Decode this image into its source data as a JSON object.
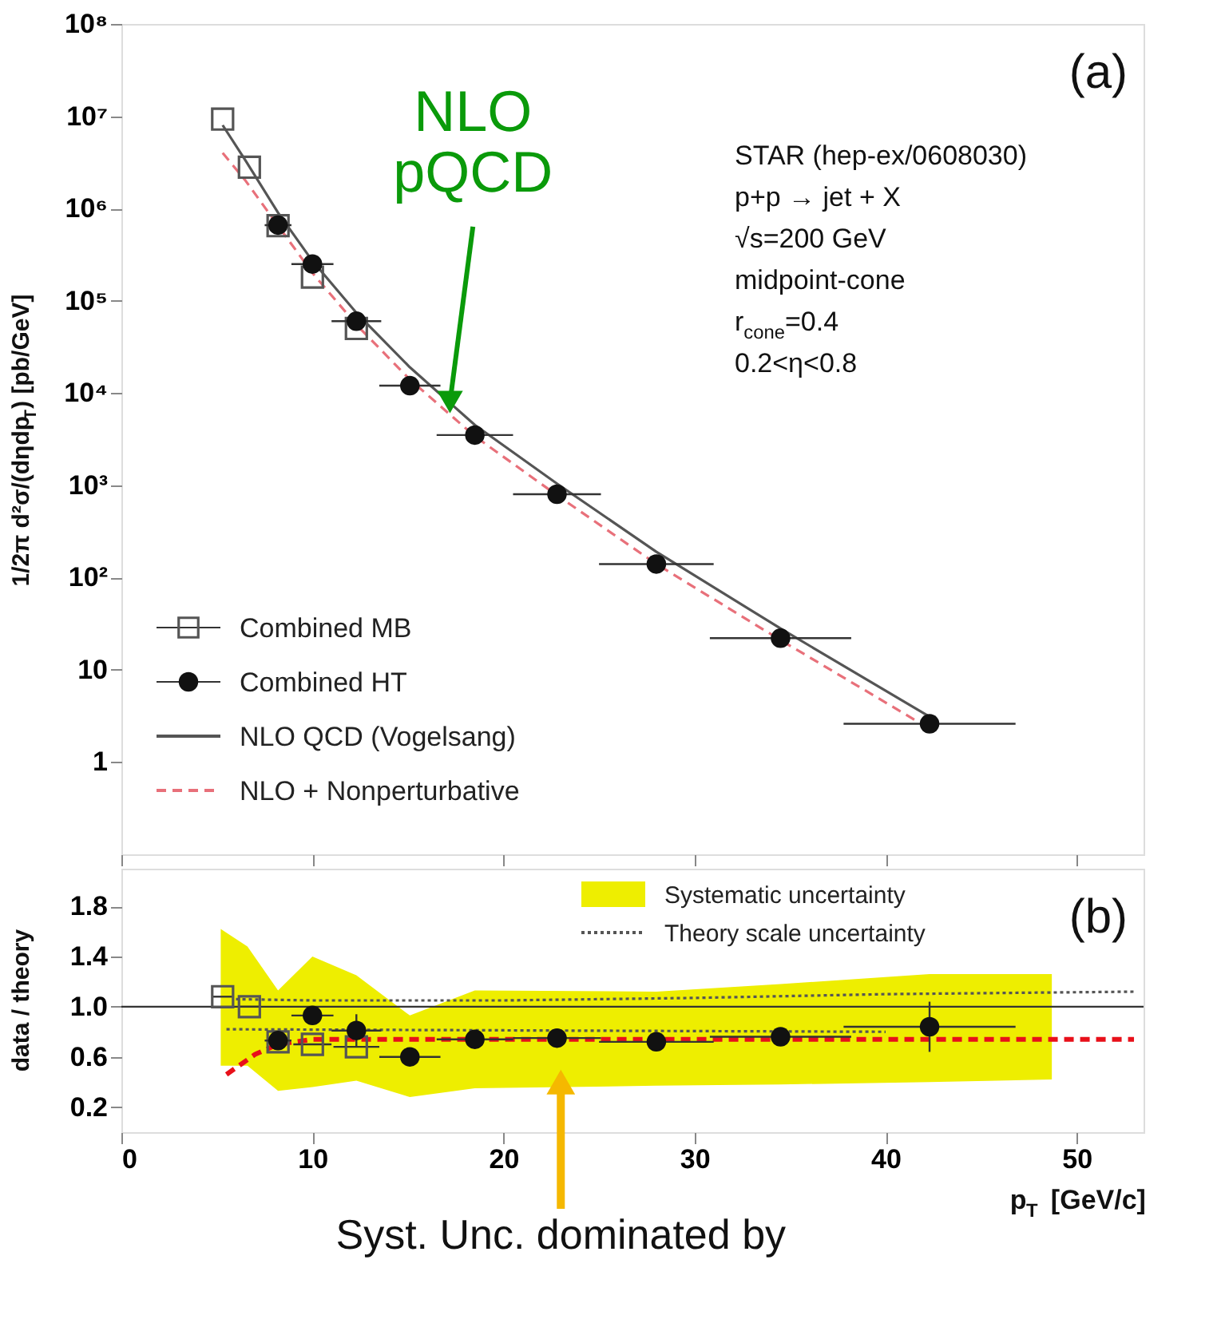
{
  "chart_data": [
    {
      "type": "scatter",
      "ylabel": "1/2π d²σ/(dηdp$_{T}$) [pb/GeV]",
      "xlim": [
        0,
        53.5
      ],
      "xticks": [
        0,
        10,
        20,
        30,
        40,
        50
      ],
      "ylim": [
        0.1,
        100000000
      ],
      "log": "y",
      "yticks": [
        1,
        10,
        {
          "value": 100,
          "label": "10²"
        },
        {
          "value": 1000,
          "label": "10³"
        },
        {
          "value": 10000,
          "label": "10⁴"
        },
        {
          "value": 100000,
          "label": "10⁵"
        },
        {
          "value": 1000000,
          "label": "10⁶"
        },
        {
          "value": 10000000,
          "label": "10⁷"
        },
        {
          "value": 100000000,
          "label": "10⁸"
        }
      ],
      "tick_labels": "y",
      "legend": "bottom left",
      "annotations": [
        "(a)",
        "STAR (hep-ex/0608030)",
        "p+p → jet + X",
        "√s=200  GeV",
        "midpoint-cone",
        "r$_{cone}$=0.4",
        "0.2<η<0.8",
        {
          "text": "NLO pQCD",
          "x": 17.2,
          "y": 8000
        }
      ],
      "series": [
        {
          "name": "Combined MB",
          "type": "scatter",
          "marker": "square",
          "color": "#555555",
          "x": [
            5.3,
            6.7,
            8.2,
            10.0,
            12.3
          ],
          "values": [
            9300000,
            2800000,
            650000,
            180000,
            50000
          ]
        },
        {
          "name": "Combined HT",
          "type": "scatter",
          "marker": "circle",
          "color": "#111111",
          "x": [
            8.2,
            10.0,
            12.3,
            15.1,
            18.5,
            22.8,
            28.0,
            34.5,
            42.3
          ],
          "values": [
            660000,
            250000,
            60000,
            12000,
            3500,
            800,
            140,
            22,
            2.6
          ],
          "xerrors": [
            0.7,
            1.1,
            1.3,
            1.6,
            2,
            2.3,
            3,
            3.7,
            4.5
          ]
        },
        {
          "name": "NLO QCD (Vogelsang)",
          "type": "line",
          "line_style": "solid",
          "color": "#555555",
          "x": [
            5.3,
            6.5,
            8.2,
            10,
            12.3,
            15.1,
            18.5,
            22.8,
            28,
            34.5,
            42.3
          ],
          "values": [
            8000000,
            3300000,
            900000,
            270000,
            74000,
            19000,
            4500,
            1040,
            190,
            28,
            3.1
          ]
        },
        {
          "name": "NLO + Nonperturbative",
          "type": "line",
          "line_style": "dashed",
          "color": "#e8707a",
          "x": [
            5.3,
            6.5,
            8.2,
            10,
            12.3,
            15.1,
            18.5,
            22.8,
            28,
            34.5,
            42.3
          ],
          "values": [
            4000000,
            2000000,
            650000,
            200000,
            55000,
            14000,
            3400,
            780,
            140,
            21,
            2.3
          ]
        }
      ]
    },
    {
      "type": "scatter",
      "ylabel": "data / theory",
      "xlabel": "p$_{T}$ [GeV/c]",
      "xlim": [
        0,
        53.5
      ],
      "xticks": [
        0,
        10,
        20,
        30,
        40,
        50
      ],
      "ylim": [
        0,
        2.1
      ],
      "yticks": [
        0.2,
        0.6,
        {
          "value": 1,
          "label": "1.0"
        },
        1.4,
        1.8
      ],
      "legend": "top right",
      "ref_lines": [
        {
          "axis": "y",
          "value": 1,
          "color": "#333333"
        }
      ],
      "annotations": [
        "(b)",
        {
          "text": "Syst. Unc. dominated by",
          "x": 23,
          "y": 0.4
        }
      ],
      "series": [
        {
          "name": "Systematic uncertainty",
          "type": "area",
          "color": "#eeee00",
          "x": [
            5.2,
            6.6,
            8.2,
            10,
            12.3,
            15.1,
            18.5,
            28,
            34.5,
            42.3,
            48.7
          ],
          "values": [
            null,
            null,
            null,
            null,
            null,
            null,
            null,
            null,
            null,
            null,
            null
          ],
          "upper": [
            1.62,
            1.48,
            1.13,
            1.4,
            1.25,
            0.93,
            1.13,
            1.12,
            1.18,
            1.26,
            1.26
          ],
          "lower": [
            0.53,
            0.53,
            0.33,
            0.36,
            0.41,
            0.28,
            0.35,
            0.37,
            0.38,
            0.4,
            0.42
          ]
        },
        {
          "name": "Theory scale uncertainty",
          "type": "line",
          "line_style": "dotted",
          "color": "#555555",
          "x": [
            6,
            10,
            20,
            30,
            40,
            53
          ],
          "values": [
            1.06,
            1.05,
            1.05,
            1.07,
            1.1,
            1.12
          ]
        },
        {
          "type": "line",
          "line_style": "dotted",
          "color": "#555555",
          "x": [
            5.5,
            40
          ],
          "values": [
            0.82,
            0.8
          ]
        },
        {
          "type": "line",
          "line_style": "dashed",
          "color": "#e8101a",
          "x": [
            5.5,
            7,
            8.2,
            10,
            15,
            30,
            53
          ],
          "values": [
            0.46,
            0.62,
            0.7,
            0.74,
            0.74,
            0.74,
            0.74
          ]
        },
        {
          "type": "scatter",
          "marker": "square",
          "color": "#555555",
          "x": [
            5.3,
            6.7,
            8.2,
            10.0,
            12.3
          ],
          "values": [
            1.08,
            1.0,
            0.72,
            0.7,
            0.68
          ],
          "xerrors": [
            0.5,
            0.6,
            null,
            1,
            1.2
          ]
        },
        {
          "type": "scatter",
          "marker": "circle",
          "color": "#111111",
          "x": [
            8.2,
            10.0,
            12.3,
            15.1,
            18.5,
            22.8,
            28.0,
            34.5,
            42.3
          ],
          "values": [
            0.73,
            0.93,
            0.81,
            0.6,
            0.74,
            0.75,
            0.72,
            0.76,
            0.84
          ],
          "errors": [
            0.07,
            0.05,
            0.13,
            0.03,
            0.03,
            0.03,
            0.03,
            0.07,
            0.2
          ],
          "xerrors": [
            0.7,
            1.1,
            1.3,
            1.6,
            2,
            2.3,
            3,
            3.7,
            4.5
          ]
        }
      ]
    }
  ]
}
